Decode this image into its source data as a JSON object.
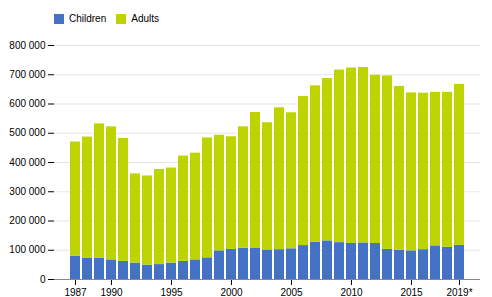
{
  "chart_data": {
    "type": "bar",
    "stacked": true,
    "categories": [
      "1987",
      null,
      null,
      "1990",
      null,
      null,
      null,
      null,
      "1995",
      null,
      null,
      null,
      null,
      "2000",
      null,
      null,
      null,
      null,
      "2005",
      null,
      null,
      null,
      null,
      "2010",
      null,
      null,
      null,
      null,
      "2015",
      null,
      null,
      null,
      "2019*"
    ],
    "series": [
      {
        "name": "Children",
        "color": "#4472c4",
        "values": [
          80000,
          72000,
          72000,
          67000,
          62000,
          56000,
          49000,
          51000,
          56000,
          62000,
          67000,
          74000,
          98000,
          103000,
          107000,
          106000,
          101000,
          102000,
          105000,
          116000,
          127000,
          132000,
          126000,
          123000,
          125000,
          123000,
          103000,
          100000,
          98000,
          102000,
          115000,
          110000,
          117000
        ]
      },
      {
        "name": "Adults",
        "color": "#bdd400",
        "values": [
          390000,
          415000,
          460000,
          455000,
          420000,
          305000,
          305000,
          325000,
          325000,
          360000,
          365000,
          410000,
          395000,
          385000,
          415000,
          465000,
          435000,
          485000,
          465000,
          510000,
          535000,
          555000,
          590000,
          600000,
          600000,
          575000,
          593000,
          560000,
          540000,
          535000,
          525000,
          530000,
          550000
        ]
      }
    ],
    "ylim": [
      0,
      800000
    ],
    "yticks": [
      0,
      {
        "value": 100000,
        "label": "100 000"
      },
      {
        "value": 200000,
        "label": "200 000"
      },
      {
        "value": 300000,
        "label": "300 000"
      },
      {
        "value": 400000,
        "label": "400 000"
      },
      {
        "value": 500000,
        "label": "500 000"
      },
      {
        "value": 600000,
        "label": "600 000"
      },
      {
        "value": 700000,
        "label": "700 000"
      },
      {
        "value": 800000,
        "label": "800 000"
      }
    ],
    "grid": true,
    "legend": "upper left"
  }
}
